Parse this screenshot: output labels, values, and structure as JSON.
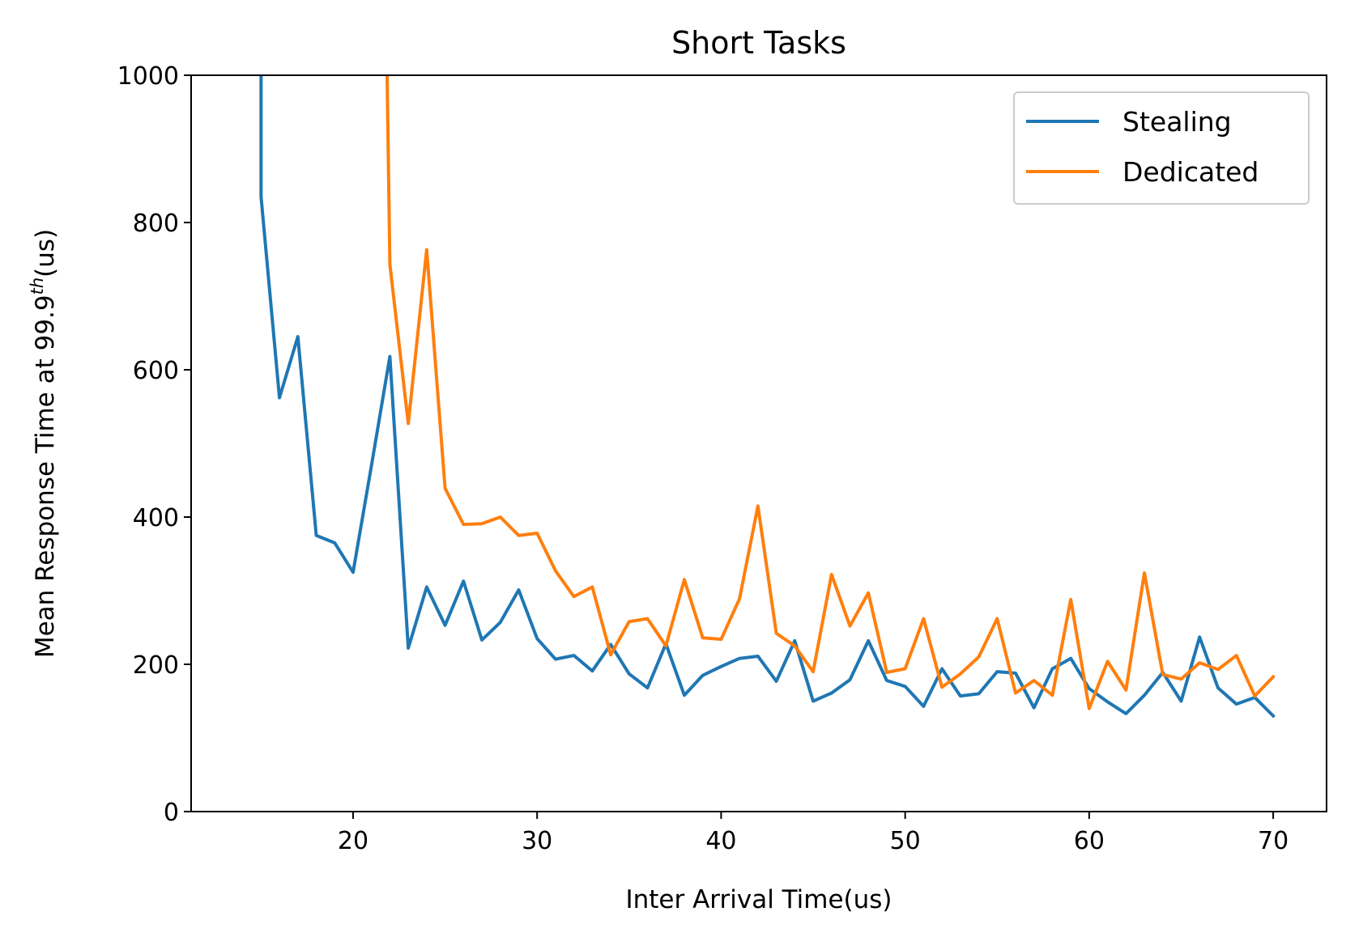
{
  "chart_data": {
    "type": "line",
    "title": "Short Tasks",
    "xlabel": "Inter Arrival Time(us)",
    "ylabel": {
      "prefix": "Mean Response Time at 99.9",
      "superscript": "th",
      "suffix": "(us)"
    },
    "xlim": [
      11.2,
      72.9
    ],
    "ylim": [
      0,
      1000
    ],
    "xticks": [
      20,
      30,
      40,
      50,
      60,
      70
    ],
    "yticks": [
      0,
      200,
      400,
      600,
      800,
      1000
    ],
    "grid": false,
    "legend_position": "top-right",
    "series": [
      {
        "name": "Stealing",
        "color": "#1f77b4",
        "x": [
          15,
          15,
          16,
          17,
          18,
          19,
          20,
          21,
          22,
          23,
          24,
          25,
          26,
          27,
          28,
          29,
          30,
          31,
          32,
          33,
          34,
          35,
          36,
          37,
          38,
          39,
          40,
          41,
          42,
          43,
          44,
          45,
          46,
          47,
          48,
          49,
          50,
          51,
          52,
          53,
          54,
          55,
          56,
          57,
          58,
          59,
          60,
          61,
          62,
          63,
          64,
          65,
          66,
          67,
          68,
          69,
          70
        ],
        "y": [
          1000,
          835,
          562,
          645,
          375,
          365,
          325,
          470,
          618,
          222,
          305,
          253,
          313,
          233,
          257,
          301,
          235,
          207,
          212,
          191,
          227,
          187,
          168,
          228,
          158,
          185,
          197,
          208,
          211,
          177,
          232,
          150,
          161,
          179,
          232,
          178,
          170,
          143,
          194,
          157,
          160,
          190,
          188,
          141,
          194,
          208,
          167,
          149,
          133,
          158,
          189,
          150,
          237,
          168,
          146,
          155,
          130
        ]
      },
      {
        "name": "Dedicated",
        "color": "#ff7f0e",
        "x": [
          21.85,
          22,
          23,
          24,
          25,
          26,
          27,
          28,
          29,
          30,
          31,
          32,
          33,
          34,
          35,
          36,
          37,
          38,
          39,
          40,
          41,
          42,
          43,
          44,
          45,
          46,
          47,
          48,
          49,
          50,
          51,
          52,
          53,
          54,
          55,
          56,
          57,
          58,
          59,
          60,
          61,
          62,
          63,
          64,
          65,
          66,
          67,
          68,
          69,
          70
        ],
        "y": [
          1000,
          743,
          527,
          763,
          439,
          390,
          391,
          400,
          375,
          378,
          327,
          292,
          305,
          213,
          258,
          262,
          225,
          315,
          236,
          234,
          289,
          415,
          242,
          225,
          190,
          322,
          252,
          297,
          189,
          194,
          262,
          169,
          187,
          210,
          262,
          161,
          178,
          158,
          288,
          140,
          204,
          165,
          324,
          186,
          180,
          202,
          193,
          212,
          157,
          183
        ]
      }
    ]
  }
}
